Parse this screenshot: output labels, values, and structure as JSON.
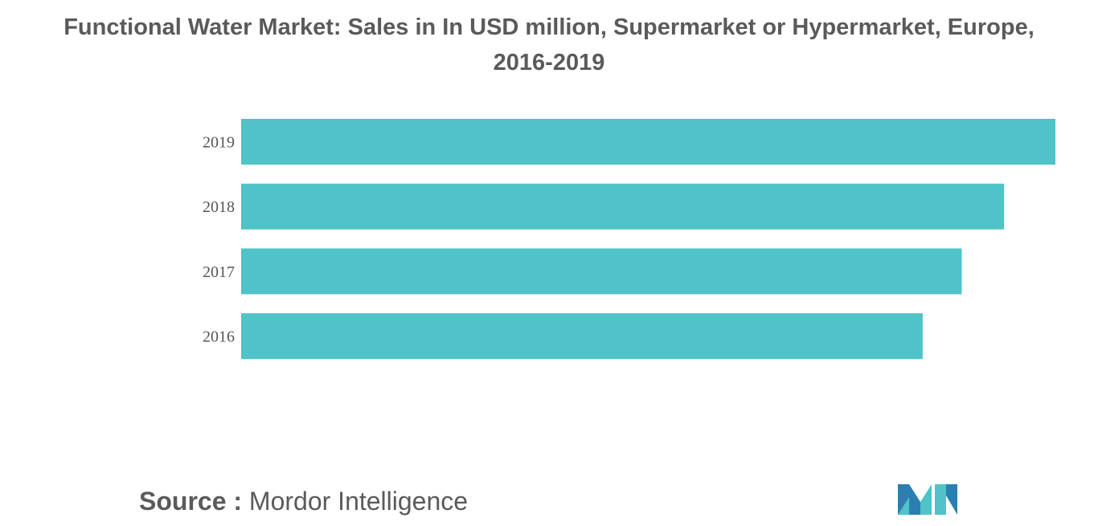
{
  "title": {
    "line1": "Functional Water Market: Sales in In USD million, Supermarket or Hypermarket, Europe,",
    "line2": "2016-2019"
  },
  "chart_data": {
    "type": "bar",
    "orientation": "horizontal",
    "categories": [
      "2019",
      "2018",
      "2017",
      "2016"
    ],
    "values": [
      100,
      93.7,
      88.5,
      83.7
    ],
    "xlabel": "",
    "ylabel": "",
    "xlim": [
      0,
      100
    ],
    "grid": false,
    "legend": "none",
    "bar_color": "#4fc3c8"
  },
  "source": {
    "label": "Source :",
    "value": "Mordor Intelligence"
  },
  "logo": {
    "icon": "mordor-intelligence-logo-icon",
    "colors": [
      "#2a7fb0",
      "#4fc3c8"
    ]
  }
}
